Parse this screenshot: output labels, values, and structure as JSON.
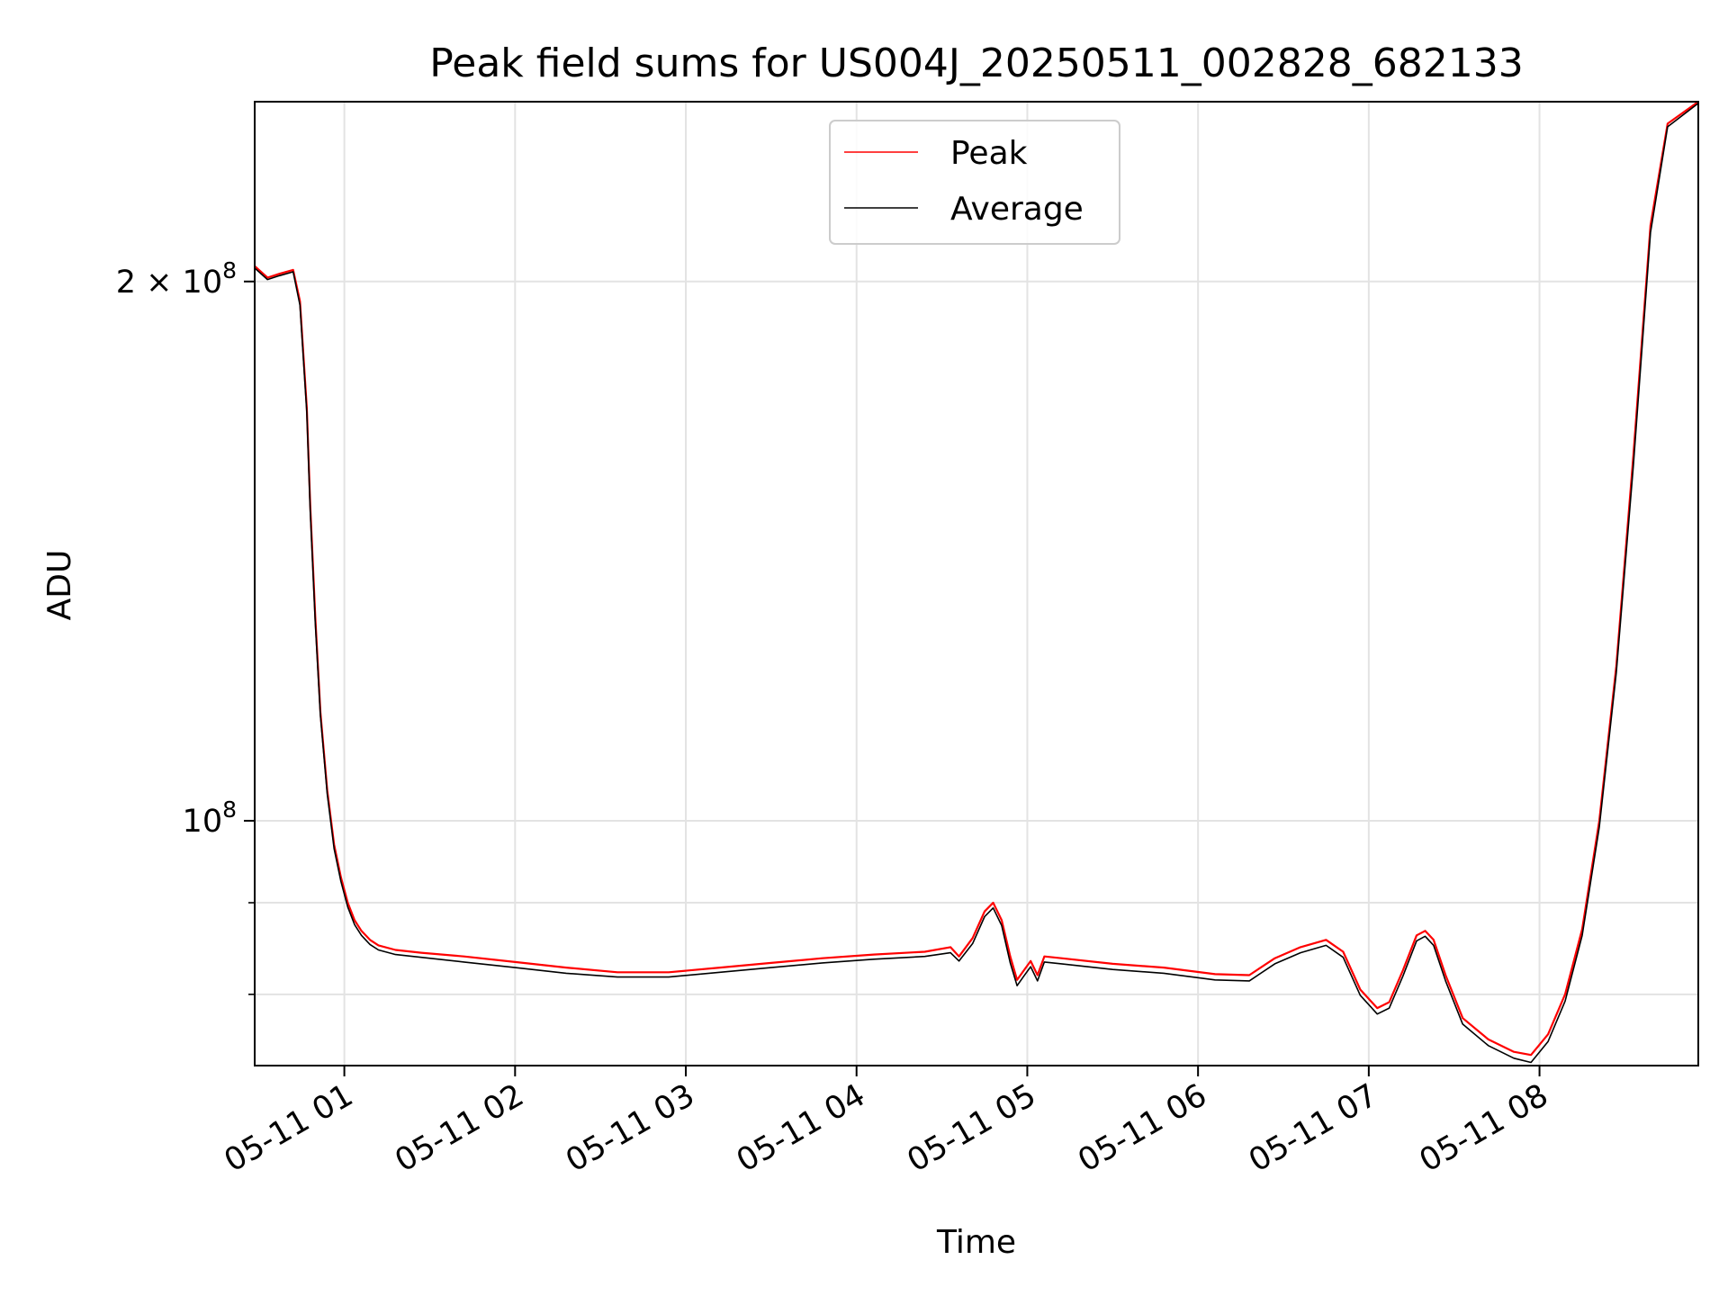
{
  "chart_data": {
    "type": "line",
    "title": "Peak field sums for US004J_20250511_002828_682133",
    "xlabel": "Time",
    "ylabel": "ADU",
    "x_ticks": [
      "05-11 01",
      "05-11 02",
      "05-11 03",
      "05-11 04",
      "05-11 05",
      "05-11 06",
      "05-11 07",
      "05-11 08"
    ],
    "x_tick_hours": [
      1,
      2,
      3,
      4,
      5,
      6,
      7,
      8
    ],
    "xlim_hours": [
      0.475,
      8.93
    ],
    "y_scale": "log",
    "ylim": [
      73000000,
      252000000
    ],
    "y_major_ticks": [
      {
        "value": 100000000,
        "base": "10",
        "exp": "8",
        "coef": ""
      },
      {
        "value": 200000000,
        "base": "10",
        "exp": "8",
        "coef": "2 × "
      }
    ],
    "y_minor_ticks": [
      80000000,
      90000000
    ],
    "grid": true,
    "legend_position": "upper center",
    "series": [
      {
        "name": "Peak",
        "color": "#ff0000",
        "x_hours": [
          0.475,
          0.55,
          0.62,
          0.7,
          0.74,
          0.78,
          0.8,
          0.83,
          0.86,
          0.9,
          0.94,
          0.98,
          1.02,
          1.06,
          1.1,
          1.15,
          1.2,
          1.3,
          1.45,
          1.7,
          2.0,
          2.3,
          2.6,
          2.9,
          3.2,
          3.5,
          3.8,
          4.1,
          4.4,
          4.55,
          4.6,
          4.68,
          4.75,
          4.8,
          4.85,
          4.9,
          4.94,
          4.98,
          5.02,
          5.06,
          5.1,
          5.2,
          5.5,
          5.8,
          6.1,
          6.3,
          6.45,
          6.6,
          6.75,
          6.85,
          6.95,
          7.05,
          7.12,
          7.2,
          7.28,
          7.33,
          7.38,
          7.45,
          7.55,
          7.7,
          7.85,
          7.95,
          8.05,
          8.15,
          8.25,
          8.35,
          8.45,
          8.55,
          8.65,
          8.75,
          8.93
        ],
        "values": [
          204000000,
          201000000,
          202000000,
          203000000,
          195000000,
          170000000,
          150000000,
          130000000,
          115000000,
          104000000,
          97000000,
          93000000,
          90000000,
          88000000,
          86800000,
          85800000,
          85200000,
          84700000,
          84400000,
          84000000,
          83400000,
          82800000,
          82300000,
          82300000,
          82800000,
          83300000,
          83800000,
          84200000,
          84500000,
          85000000,
          84000000,
          86000000,
          89000000,
          90000000,
          88000000,
          84000000,
          81500000,
          82500000,
          83500000,
          82000000,
          84000000,
          83800000,
          83200000,
          82800000,
          82100000,
          82000000,
          83800000,
          85000000,
          85800000,
          84500000,
          80500000,
          78600000,
          79200000,
          82500000,
          86300000,
          86800000,
          85800000,
          82000000,
          77600000,
          75500000,
          74300000,
          74000000,
          76000000,
          80000000,
          87000000,
          100000000,
          122000000,
          160000000,
          215000000,
          245000000,
          252000000
        ]
      },
      {
        "name": "Average",
        "color": "#000000",
        "x_hours": [
          0.475,
          0.55,
          0.62,
          0.7,
          0.74,
          0.78,
          0.8,
          0.83,
          0.86,
          0.9,
          0.94,
          0.98,
          1.02,
          1.06,
          1.1,
          1.15,
          1.2,
          1.3,
          1.45,
          1.7,
          2.0,
          2.3,
          2.6,
          2.9,
          3.2,
          3.5,
          3.8,
          4.1,
          4.4,
          4.55,
          4.6,
          4.68,
          4.75,
          4.8,
          4.85,
          4.9,
          4.94,
          4.98,
          5.02,
          5.06,
          5.1,
          5.2,
          5.5,
          5.8,
          6.1,
          6.3,
          6.45,
          6.6,
          6.75,
          6.85,
          6.95,
          7.05,
          7.12,
          7.2,
          7.28,
          7.33,
          7.38,
          7.45,
          7.55,
          7.7,
          7.85,
          7.95,
          8.05,
          8.15,
          8.25,
          8.35,
          8.45,
          8.55,
          8.65,
          8.75,
          8.93
        ],
        "values": [
          203500000,
          200500000,
          201500000,
          202500000,
          194000000,
          169000000,
          149000000,
          129000000,
          114500000,
          103500000,
          96500000,
          92500000,
          89500000,
          87500000,
          86300000,
          85300000,
          84700000,
          84200000,
          83900000,
          83400000,
          82800000,
          82200000,
          81800000,
          81800000,
          82300000,
          82800000,
          83300000,
          83700000,
          84000000,
          84400000,
          83500000,
          85400000,
          88400000,
          89400000,
          87400000,
          83300000,
          80900000,
          81900000,
          82900000,
          81400000,
          83400000,
          83200000,
          82600000,
          82200000,
          81500000,
          81400000,
          83200000,
          84400000,
          85200000,
          83900000,
          79900000,
          78000000,
          78600000,
          81900000,
          85700000,
          86200000,
          85200000,
          81400000,
          77000000,
          74900000,
          73700000,
          73300000,
          75300000,
          79300000,
          86300000,
          99200000,
          121000000,
          158000000,
          213000000,
          244000000,
          251500000
        ]
      }
    ]
  }
}
